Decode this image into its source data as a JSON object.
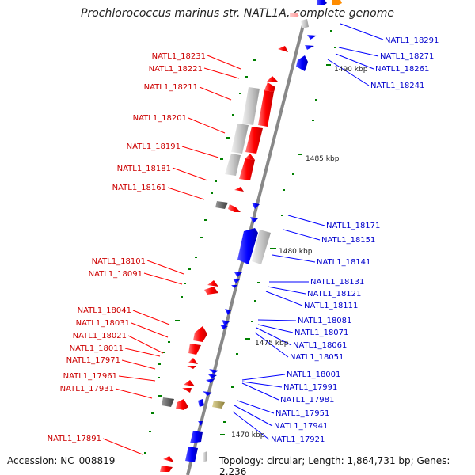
{
  "title": "Prochlorococcus marinus str. NATL1A, complete genome",
  "accession": "Accession: NC_008819",
  "topology": "Topology: circular; Length: 1,864,731 bp; Genes: 2,236",
  "scale_marks": [
    "1490 kbp",
    "1485 kbp",
    "1480 kbp",
    "1475 kbp",
    "1470 kbp"
  ],
  "left_labels": [
    "NATL1_18231",
    "NATL1_18221",
    "NATL1_18211",
    "NATL1_18201",
    "NATL1_18191",
    "NATL1_18181",
    "NATL1_18161",
    "NATL1_18101",
    "NATL1_18091",
    "NATL1_18041",
    "NATL1_18031",
    "NATL1_18021",
    "NATL1_18011",
    "NATL1_17971",
    "NATL1_17961",
    "NATL1_17931",
    "NATL1_17891"
  ],
  "right_labels": [
    "NATL1_18291",
    "NATL1_18271",
    "NATL1_18261",
    "NATL1_18241",
    "NATL1_18171",
    "NATL1_18151",
    "NATL1_18141",
    "NATL1_18131",
    "NATL1_18121",
    "NATL1_18111",
    "NATL1_18081",
    "NATL1_18071",
    "NATL1_18061",
    "NATL1_18051",
    "NATL1_18001",
    "NATL1_17991",
    "NATL1_17981",
    "NATL1_17951",
    "NATL1_17941",
    "NATL1_17921"
  ],
  "colors": {
    "forward": "#ff0000",
    "reverse": "#0000ff",
    "forward_label": "#cc0000",
    "reverse_label": "#0000cc",
    "backbone": "#888888",
    "tick": "#008000"
  }
}
